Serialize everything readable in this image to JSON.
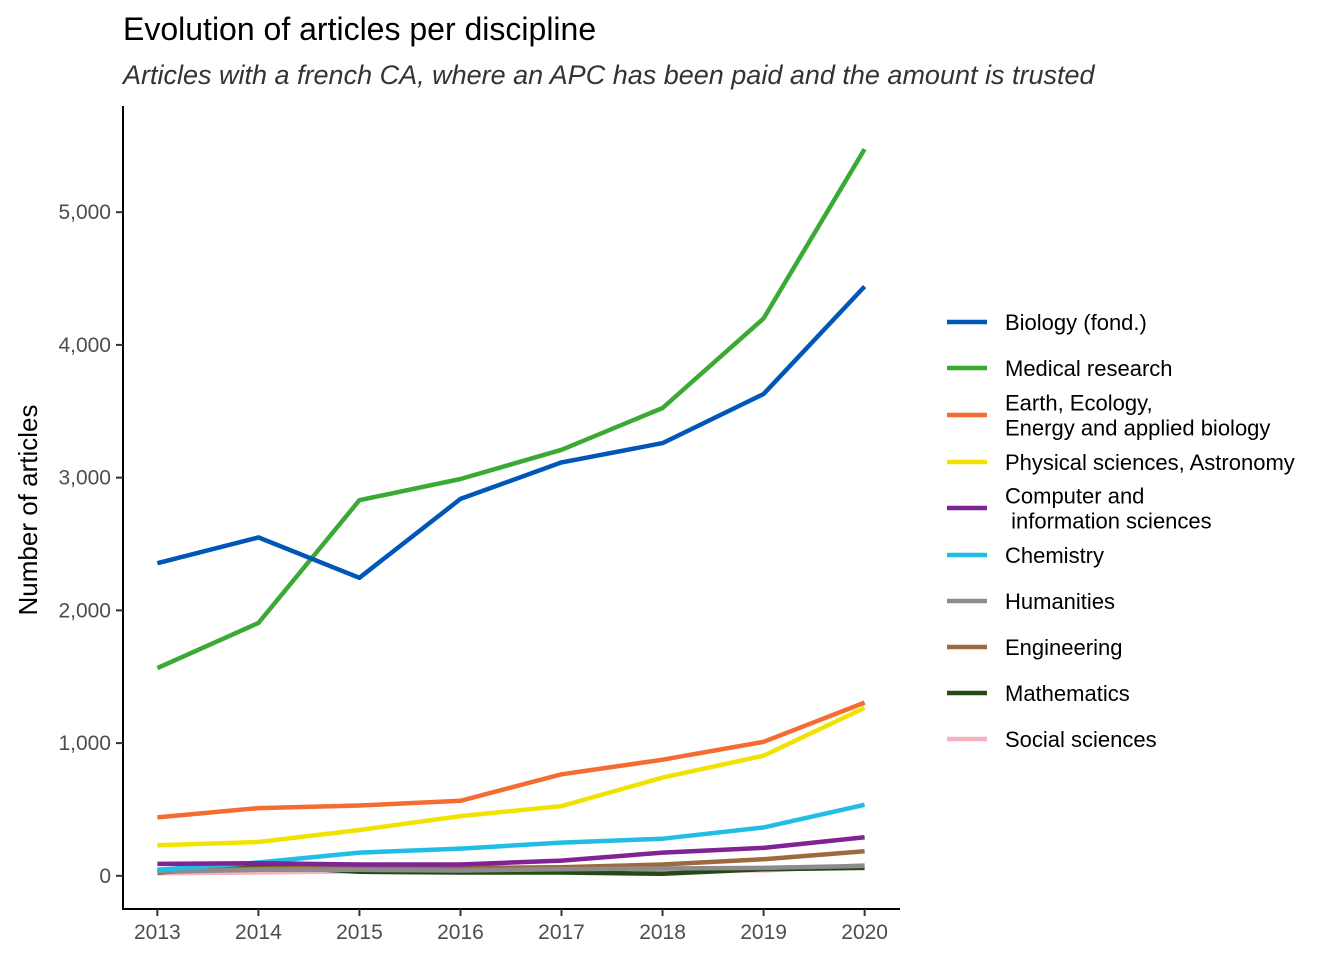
{
  "chart_data": {
    "type": "line",
    "title": "Evolution of articles per discipline",
    "subtitle": "Articles with a french CA, where an APC has been paid and the amount is trusted",
    "xlabel": "",
    "ylabel": "Number of articles",
    "x": [
      2013,
      2014,
      2015,
      2016,
      2017,
      2018,
      2019,
      2020
    ],
    "xticks": [
      "2013",
      "2014",
      "2015",
      "2016",
      "2017",
      "2018",
      "2019",
      "2020"
    ],
    "xlim": [
      2012.66,
      2020.35
    ],
    "ylim": [
      -250,
      5800
    ],
    "yticks": [
      0,
      1000,
      2000,
      3000,
      4000,
      5000
    ],
    "ytick_labels": [
      "0",
      "1,000",
      "2,000",
      "3,000",
      "4,000",
      "5,000"
    ],
    "grid": false,
    "legend_position": "right",
    "series": [
      {
        "name": "Biology (fond.)",
        "color": "#0057b7",
        "values": [
          2355,
          2550,
          2245,
          2840,
          3115,
          3260,
          3630,
          4440
        ]
      },
      {
        "name": "Medical research",
        "color": "#3aaa35",
        "values": [
          1565,
          1905,
          2830,
          2990,
          3210,
          3525,
          4200,
          5475
        ]
      },
      {
        "name": "Earth, Ecology,\nEnergy and applied biology",
        "color": "#f56c32",
        "values": [
          440,
          510,
          530,
          565,
          765,
          875,
          1010,
          1305
        ]
      },
      {
        "name": "Physical sciences, Astronomy",
        "color": "#f2e200",
        "values": [
          230,
          255,
          345,
          450,
          525,
          740,
          905,
          1265
        ]
      },
      {
        "name": "Computer and\n information sciences",
        "color": "#7f2395",
        "values": [
          90,
          95,
          85,
          85,
          115,
          175,
          210,
          290
        ]
      },
      {
        "name": "Chemistry",
        "color": "#22bde4",
        "values": [
          45,
          100,
          175,
          205,
          250,
          280,
          365,
          535
        ]
      },
      {
        "name": "Humanities",
        "color": "#8c8c8c",
        "values": [
          30,
          45,
          45,
          40,
          50,
          55,
          60,
          75
        ]
      },
      {
        "name": "Engineering",
        "color": "#9c6a3c",
        "values": [
          40,
          55,
          60,
          60,
          65,
          85,
          125,
          185
        ]
      },
      {
        "name": "Mathematics",
        "color": "#234a14",
        "values": [
          25,
          75,
          30,
          25,
          25,
          15,
          50,
          60
        ]
      },
      {
        "name": "Social sciences",
        "color": "#f4b3bf",
        "values": [
          20,
          25,
          35,
          30,
          40,
          45,
          40,
          80
        ]
      }
    ]
  }
}
